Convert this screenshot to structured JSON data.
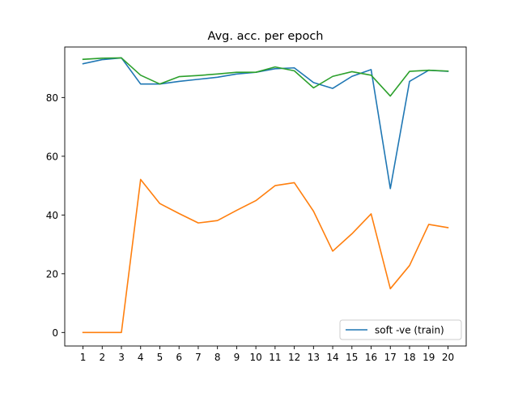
{
  "chart_data": {
    "type": "line",
    "title": "Avg. acc. per epoch",
    "xlabel": "",
    "ylabel": "",
    "x": [
      1,
      2,
      3,
      4,
      5,
      6,
      7,
      8,
      9,
      10,
      11,
      12,
      13,
      14,
      15,
      16,
      17,
      18,
      19,
      20
    ],
    "x_ticks": [
      "1",
      "2",
      "3",
      "4",
      "5",
      "6",
      "7",
      "8",
      "9",
      "10",
      "11",
      "12",
      "13",
      "14",
      "15",
      "16",
      "17",
      "18",
      "19",
      "20"
    ],
    "y_ticks": [
      "0",
      "20",
      "40",
      "60",
      "80"
    ],
    "y_tick_values": [
      0,
      20,
      40,
      60,
      80
    ],
    "xlim": [
      0.05,
      20.95
    ],
    "ylim": [
      -4.6,
      97.2
    ],
    "grid": false,
    "legend_position": "lower-right",
    "series": [
      {
        "name": "soft -ve (train)",
        "color": "#1f77b4",
        "values": [
          91.5,
          92.9,
          93.5,
          84.6,
          84.6,
          85.5,
          86.2,
          86.9,
          88.0,
          88.6,
          89.8,
          90.1,
          85.1,
          83.1,
          87.2,
          89.5,
          49.0,
          85.5,
          89.3,
          88.9
        ]
      },
      {
        "color": "#ff7f0e",
        "values": [
          0.0,
          0.0,
          0.0,
          52.1,
          43.9,
          40.5,
          37.3,
          38.1,
          41.6,
          44.9,
          50.0,
          51.0,
          41.3,
          27.7,
          33.6,
          40.4,
          14.9,
          22.8,
          36.8,
          35.7
        ]
      },
      {
        "color": "#2ca02c",
        "values": [
          93.0,
          93.4,
          93.5,
          87.6,
          84.6,
          87.1,
          87.5,
          88.0,
          88.6,
          88.6,
          90.4,
          89.1,
          83.3,
          87.2,
          88.8,
          87.6,
          80.5,
          88.9,
          89.3,
          89.0
        ]
      }
    ]
  }
}
